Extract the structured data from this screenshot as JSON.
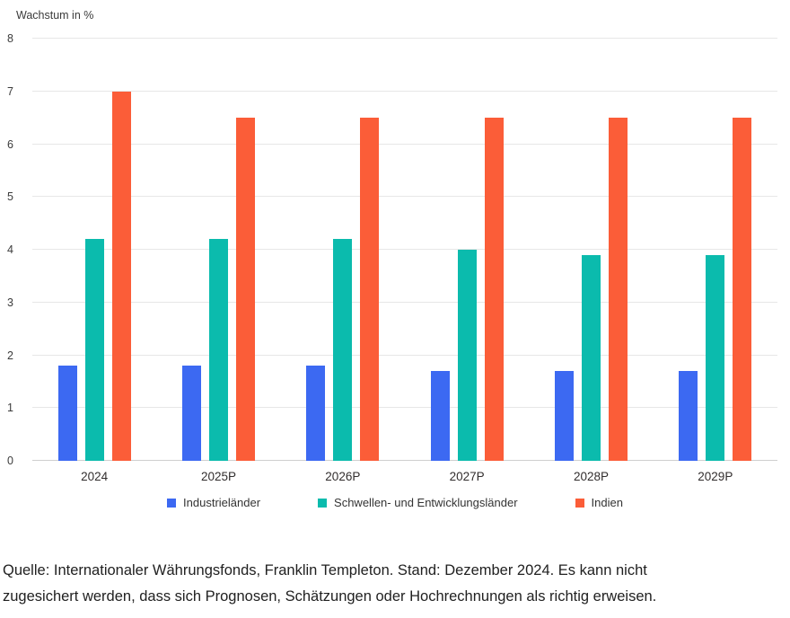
{
  "chart_title": "Wachstum in %",
  "chart_data": {
    "type": "bar",
    "title": "Wachstum in %",
    "xlabel": "",
    "ylabel": "Wachstum in %",
    "ylim": [
      0,
      8
    ],
    "yticks": [
      0,
      1,
      2,
      3,
      4,
      5,
      6,
      7,
      8
    ],
    "grid": true,
    "legend_position": "bottom",
    "categories": [
      "2024",
      "2025P",
      "2026P",
      "2027P",
      "2028P",
      "2029P"
    ],
    "series": [
      {
        "name": "Industrieländer",
        "color": "#3c69f2",
        "values": [
          1.8,
          1.8,
          1.8,
          1.7,
          1.7,
          1.7
        ]
      },
      {
        "name": "Schwellen- und Entwicklungsländer",
        "color": "#0bbbad",
        "values": [
          4.2,
          4.2,
          4.2,
          4.0,
          3.9,
          3.9
        ]
      },
      {
        "name": "Indien",
        "color": "#fb5d38",
        "values": [
          7.0,
          6.5,
          6.5,
          6.5,
          6.5,
          6.5
        ]
      }
    ]
  },
  "footer": {
    "line1": "Quelle: Internationaler Währungsfonds, Franklin Templeton. Stand: Dezember 2024. Es kann nicht",
    "line2": "zugesichert werden, dass sich Prognosen, Schätzungen oder Hochrechnungen als richtig erweisen."
  }
}
